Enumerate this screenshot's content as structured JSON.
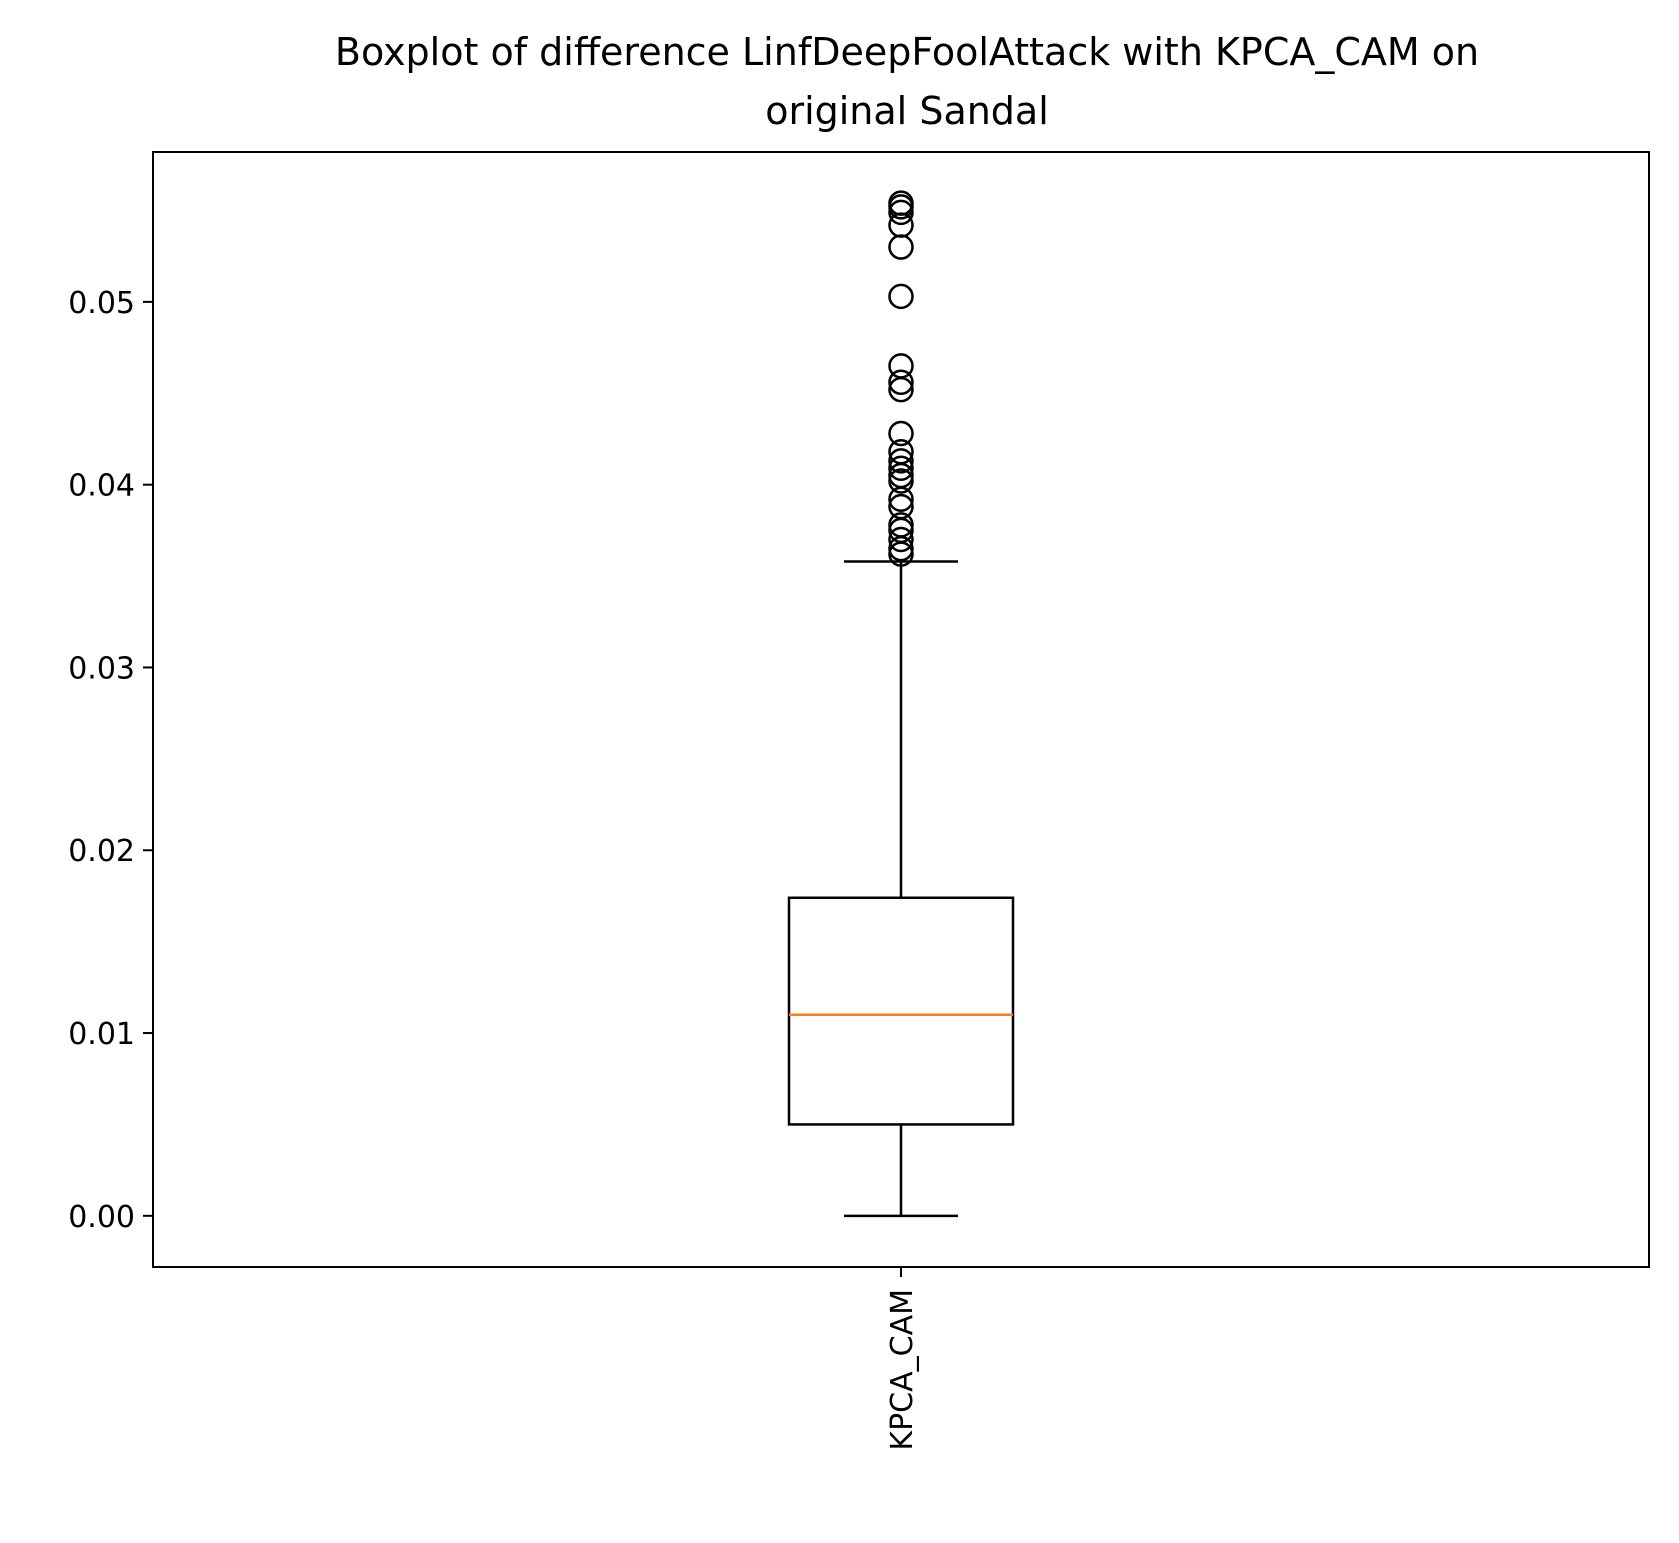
{
  "chart_data": {
    "type": "boxplot",
    "title_lines": [
      "Boxplot of difference LinfDeepFoolAttack with KPCA_CAM on",
      "original Sandal"
    ],
    "xlabel": "",
    "ylabel": "",
    "categories": [
      "KPCA_CAM"
    ],
    "ylim": [
      -0.0028,
      0.0582
    ],
    "y_ticks": [
      0.0,
      0.01,
      0.02,
      0.03,
      0.04,
      0.05
    ],
    "y_tick_labels": [
      "0.00",
      "0.01",
      "0.02",
      "0.03",
      "0.04",
      "0.05"
    ],
    "grid": false,
    "boxes": [
      {
        "name": "KPCA_CAM",
        "whisker_low": 0.0,
        "q1": 0.005,
        "median": 0.011,
        "q3": 0.0174,
        "whisker_high": 0.0358,
        "outliers": [
          0.0362,
          0.0365,
          0.037,
          0.0375,
          0.0378,
          0.0388,
          0.0392,
          0.0402,
          0.0405,
          0.0409,
          0.0413,
          0.0418,
          0.0428,
          0.0452,
          0.0456,
          0.0465,
          0.0503,
          0.053,
          0.0542,
          0.0549,
          0.0552,
          0.0554
        ]
      }
    ],
    "colors": {
      "box": "#000000",
      "median": "#ff7f0e",
      "outlier": "#000000"
    }
  }
}
